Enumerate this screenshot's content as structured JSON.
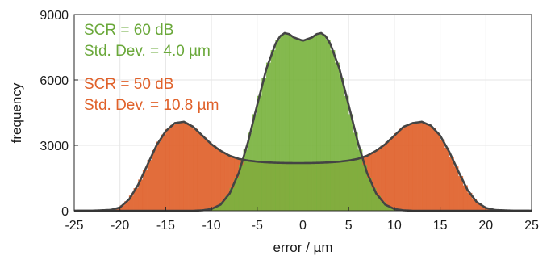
{
  "chart_data": {
    "type": "bar",
    "title": "",
    "xlabel": "error / µm",
    "ylabel": "frequency",
    "xlim": [
      -25,
      25
    ],
    "ylim": [
      0,
      9000
    ],
    "xticks": [
      -25,
      -20,
      -15,
      -10,
      -5,
      0,
      5,
      10,
      15,
      20,
      25
    ],
    "yticks": [
      0,
      3000,
      6000,
      9000
    ],
    "grid": true,
    "bin_width": 0.5,
    "series": [
      {
        "key": "scr50",
        "color": "#e0612a",
        "points": [
          [
            -25,
            0
          ],
          [
            -23,
            5
          ],
          [
            -21,
            40
          ],
          [
            -20,
            150
          ],
          [
            -19,
            520
          ],
          [
            -18,
            1200
          ],
          [
            -17,
            2100
          ],
          [
            -16,
            3000
          ],
          [
            -15,
            3650
          ],
          [
            -14,
            4020
          ],
          [
            -13,
            4080
          ],
          [
            -12,
            3850
          ],
          [
            -11,
            3450
          ],
          [
            -10,
            3050
          ],
          [
            -9,
            2750
          ],
          [
            -8,
            2520
          ],
          [
            -7,
            2380
          ],
          [
            -6,
            2300
          ],
          [
            -5,
            2250
          ],
          [
            -4,
            2220
          ],
          [
            -3,
            2200
          ],
          [
            -2,
            2190
          ],
          [
            -1,
            2185
          ],
          [
            0,
            2185
          ],
          [
            1,
            2190
          ],
          [
            2,
            2200
          ],
          [
            3,
            2220
          ],
          [
            4,
            2250
          ],
          [
            5,
            2300
          ],
          [
            6,
            2380
          ],
          [
            7,
            2520
          ],
          [
            8,
            2750
          ],
          [
            9,
            3050
          ],
          [
            10,
            3450
          ],
          [
            11,
            3850
          ],
          [
            12,
            4020
          ],
          [
            13,
            4080
          ],
          [
            14,
            3900
          ],
          [
            15,
            3450
          ],
          [
            16,
            2700
          ],
          [
            17,
            1800
          ],
          [
            18,
            950
          ],
          [
            19,
            400
          ],
          [
            20,
            130
          ],
          [
            21,
            35
          ],
          [
            23,
            5
          ],
          [
            25,
            0
          ]
        ]
      },
      {
        "key": "scr60",
        "color": "#7ab33f",
        "points": [
          [
            -25,
            0
          ],
          [
            -12,
            0
          ],
          [
            -11,
            20
          ],
          [
            -10,
            80
          ],
          [
            -9,
            280
          ],
          [
            -8,
            800
          ],
          [
            -7,
            1750
          ],
          [
            -6,
            3150
          ],
          [
            -5,
            4850
          ],
          [
            -4,
            6500
          ],
          [
            -3,
            7650
          ],
          [
            -2.5,
            8000
          ],
          [
            -2,
            8150
          ],
          [
            -1.5,
            8100
          ],
          [
            -1,
            7950
          ],
          [
            0,
            7800
          ],
          [
            1,
            7950
          ],
          [
            1.5,
            8100
          ],
          [
            2,
            8150
          ],
          [
            2.5,
            8000
          ],
          [
            3,
            7650
          ],
          [
            4,
            6500
          ],
          [
            5,
            4850
          ],
          [
            6,
            3150
          ],
          [
            7,
            1750
          ],
          [
            8,
            800
          ],
          [
            9,
            280
          ],
          [
            10,
            80
          ],
          [
            11,
            20
          ],
          [
            12,
            0
          ],
          [
            25,
            0
          ]
        ]
      }
    ],
    "annotations": [
      {
        "key": "scr60_label",
        "text": "SCR = 60 dB",
        "color": "#6aa83a"
      },
      {
        "key": "scr60_std",
        "text": "Std. Dev. = 4.0 µm",
        "color": "#6aa83a"
      },
      {
        "key": "scr50_label",
        "text": "SCR = 50 dB",
        "color": "#e0612a"
      },
      {
        "key": "scr50_std",
        "text": "Std. Dev. = 10.8 µm",
        "color": "#e0612a"
      }
    ]
  }
}
